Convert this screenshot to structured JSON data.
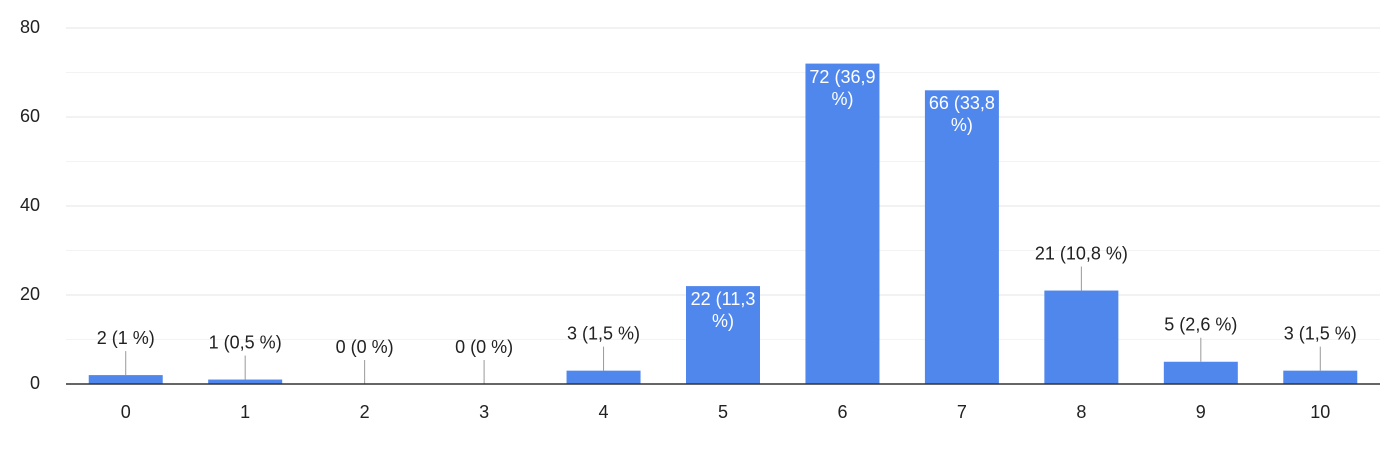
{
  "chart_data": {
    "type": "bar",
    "categories": [
      "0",
      "1",
      "2",
      "3",
      "4",
      "5",
      "6",
      "7",
      "8",
      "9",
      "10"
    ],
    "values": [
      2,
      1,
      0,
      0,
      3,
      22,
      72,
      66,
      21,
      5,
      3
    ],
    "value_labels": [
      "2 (1 %)",
      "1 (0,5 %)",
      "0 (0 %)",
      "0 (0 %)",
      "3 (1,5 %)",
      "22 (11,3 %)",
      "72 (36,9 %)",
      "66 (33,8 %)",
      "21 (10,8 %)",
      "5 (2,6 %)",
      "3 (1,5 %)"
    ],
    "color": "#5087ec",
    "ylim": [
      0,
      80
    ],
    "yticks": [
      0,
      20,
      40,
      60,
      80
    ],
    "minor_gridlines": [
      10,
      30,
      50,
      70
    ],
    "grid": true
  }
}
